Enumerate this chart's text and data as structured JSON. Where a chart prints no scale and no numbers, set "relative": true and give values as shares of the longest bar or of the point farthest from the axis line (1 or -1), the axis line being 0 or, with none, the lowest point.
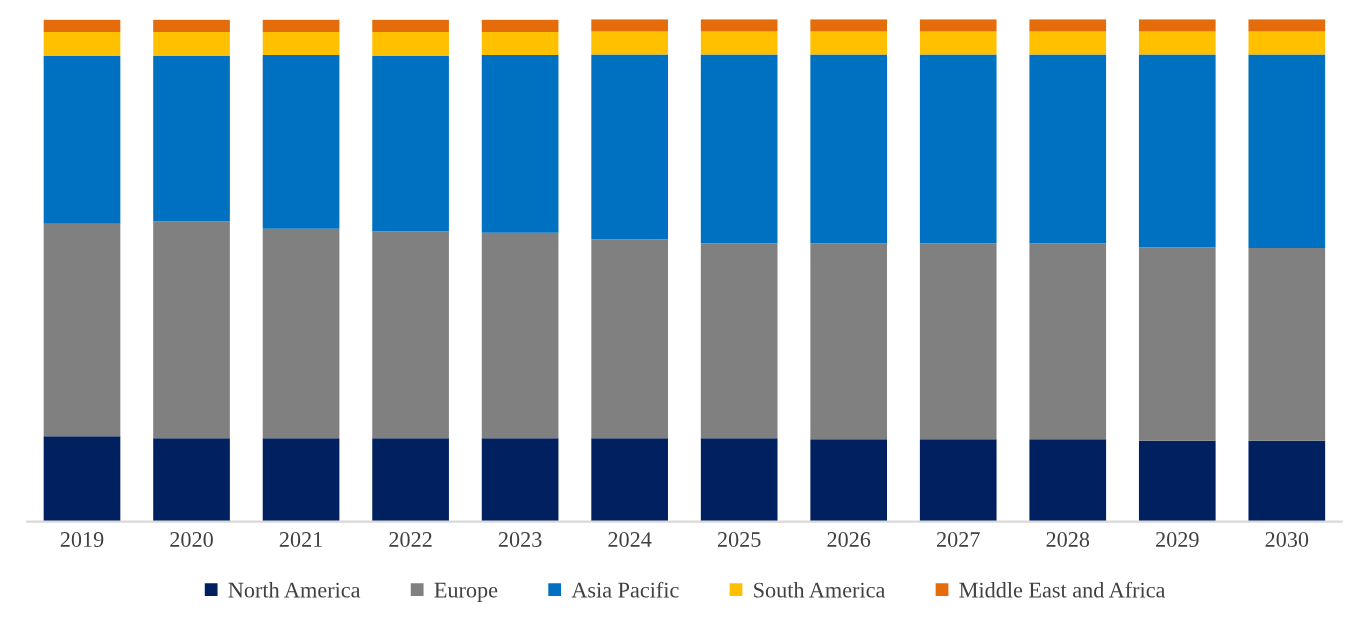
{
  "chart_data": {
    "type": "bar",
    "stacked": true,
    "relative": true,
    "legend": "bottom",
    "grid": false,
    "categories": [
      "2019",
      "2020",
      "2021",
      "2022",
      "2023",
      "2024",
      "2025",
      "2026",
      "2027",
      "2028",
      "2029",
      "2030"
    ],
    "series": [
      {
        "name": "North America",
        "color": "#002060",
        "values": [
          0.17,
          0.166,
          0.166,
          0.166,
          0.166,
          0.166,
          0.166,
          0.164,
          0.164,
          0.164,
          0.161,
          0.161
        ]
      },
      {
        "name": "Europe",
        "color": "#808080",
        "values": [
          0.423,
          0.432,
          0.417,
          0.412,
          0.409,
          0.396,
          0.388,
          0.39,
          0.39,
          0.39,
          0.385,
          0.384
        ]
      },
      {
        "name": "Asia Pacific",
        "color": "#0070c0",
        "values": [
          0.334,
          0.329,
          0.346,
          0.349,
          0.354,
          0.368,
          0.376,
          0.376,
          0.376,
          0.376,
          0.384,
          0.385
        ]
      },
      {
        "name": "South America",
        "color": "#ffc000",
        "values": [
          0.048,
          0.048,
          0.046,
          0.048,
          0.046,
          0.046,
          0.046,
          0.046,
          0.046,
          0.046,
          0.046,
          0.046
        ]
      },
      {
        "name": "Middle East and Africa",
        "color": "#e46c0a",
        "values": [
          0.024,
          0.024,
          0.024,
          0.024,
          0.024,
          0.024,
          0.024,
          0.024,
          0.024,
          0.024,
          0.024,
          0.024
        ]
      }
    ]
  }
}
